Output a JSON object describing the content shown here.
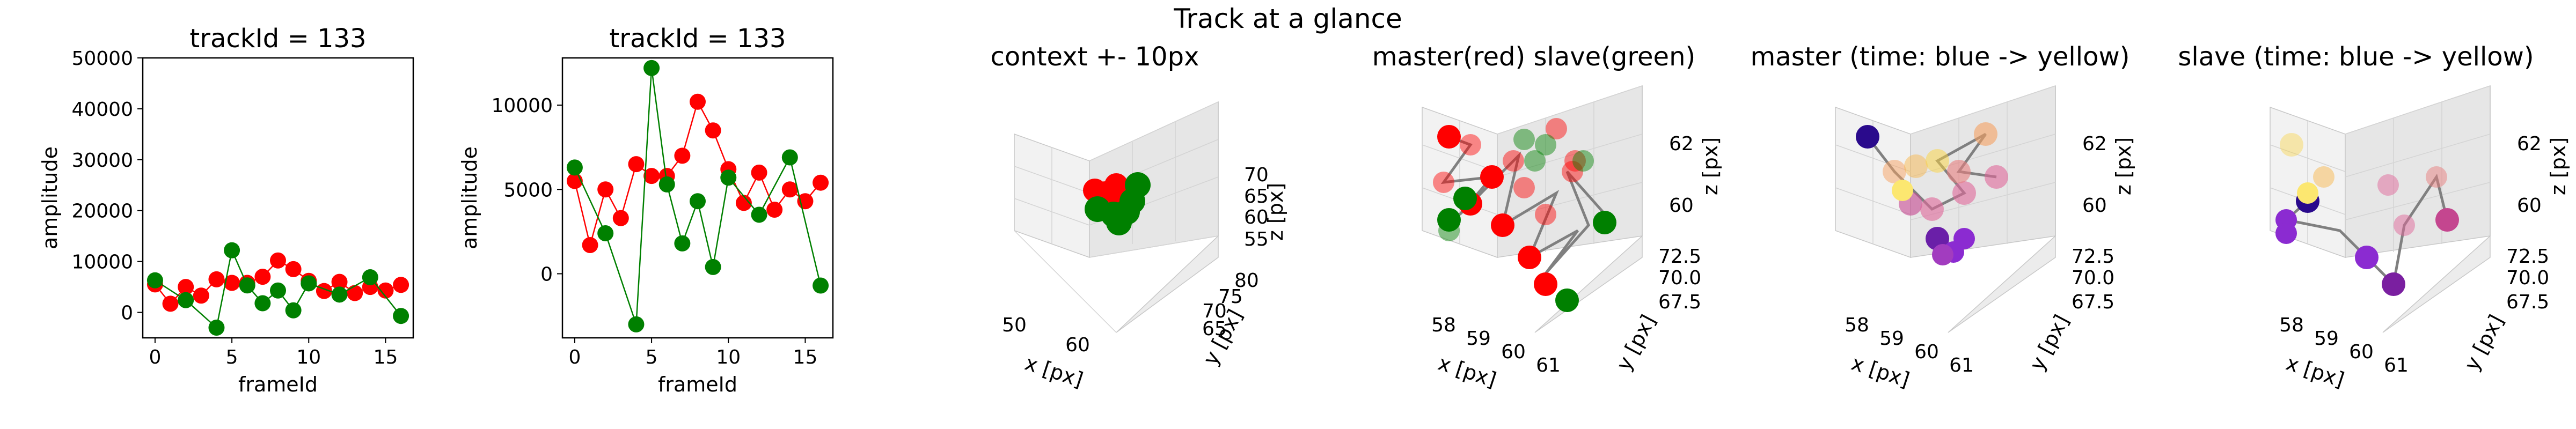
{
  "figure": {
    "suptitle": "Track at a glance"
  },
  "chart_data": [
    {
      "type": "scatter",
      "title": "trackId = 133",
      "xlabel": "frameId",
      "ylabel": "amplitude",
      "xlim": [
        -0.8,
        16.8
      ],
      "ylim": [
        -5000,
        50000
      ],
      "xticks": [
        "0",
        "5",
        "10",
        "15"
      ],
      "yticks": [
        "0",
        "10000",
        "20000",
        "30000",
        "40000",
        "50000"
      ],
      "series": [
        {
          "color": "#ff0000",
          "x": [
            0,
            1,
            2,
            3,
            4,
            5,
            6,
            7,
            8,
            9,
            10,
            11,
            12,
            13,
            14,
            15,
            16
          ],
          "y": [
            5500,
            1700,
            5000,
            3300,
            6500,
            5800,
            5800,
            7000,
            10200,
            8500,
            6200,
            4200,
            6000,
            3800,
            5000,
            4300,
            5400
          ]
        },
        {
          "color": "#008000",
          "x": [
            0,
            2,
            4,
            5,
            6,
            7,
            8,
            9,
            10,
            12,
            14,
            16
          ],
          "y": [
            6300,
            2400,
            -3000,
            12200,
            5300,
            1800,
            4300,
            400,
            5700,
            3500,
            6900,
            -700
          ]
        }
      ]
    },
    {
      "type": "scatter",
      "title": "trackId = 133",
      "xlabel": "frameId",
      "ylabel": "amplitude",
      "xlim": [
        -0.8,
        16.8
      ],
      "ylim": [
        -3800,
        12800
      ],
      "xticks": [
        "0",
        "5",
        "10",
        "15"
      ],
      "yticks": [
        "0",
        "5000",
        "10000"
      ],
      "series": [
        {
          "color": "#ff0000",
          "x": [
            0,
            1,
            2,
            3,
            4,
            5,
            6,
            7,
            8,
            9,
            10,
            11,
            12,
            13,
            14,
            15,
            16
          ],
          "y": [
            5500,
            1700,
            5000,
            3300,
            6500,
            5800,
            5800,
            7000,
            10200,
            8500,
            6200,
            4200,
            6000,
            3800,
            5000,
            4300,
            5400
          ]
        },
        {
          "color": "#008000",
          "x": [
            0,
            2,
            4,
            5,
            6,
            7,
            8,
            9,
            10,
            12,
            14,
            16
          ],
          "y": [
            6300,
            2400,
            -3000,
            12200,
            5300,
            1800,
            4300,
            400,
            5700,
            3500,
            6900,
            -700
          ]
        }
      ]
    },
    {
      "type": "scatter3d",
      "title": "context +- 10px",
      "xlabel": "x [px]",
      "ylabel": "y [px]",
      "zlabel": "z [px]",
      "xticks": [
        "50",
        "60"
      ],
      "yticks": [
        "65",
        "70",
        "75",
        "80"
      ],
      "zticks": [
        "55",
        "60",
        "65",
        "70"
      ],
      "colors": [
        "#ff0000",
        "#008000",
        "#808080"
      ]
    },
    {
      "type": "scatter3d",
      "title": "master(red) slave(green)",
      "xlabel": "x [px]",
      "ylabel": "y [px]",
      "zlabel": "z [px]",
      "xticks": [
        "58",
        "59",
        "60",
        "61"
      ],
      "yticks": [
        "67.5",
        "70.0",
        "72.5"
      ],
      "zticks": [
        "60",
        "62"
      ],
      "colors": [
        "#ff0000",
        "#008000",
        "#808080"
      ]
    },
    {
      "type": "scatter3d",
      "title": "master (time: blue -> yellow)",
      "xlabel": "x [px]",
      "ylabel": "y [px]",
      "zlabel": "z [px]",
      "xticks": [
        "58",
        "59",
        "60",
        "61"
      ],
      "yticks": [
        "67.5",
        "70.0",
        "72.5"
      ],
      "zticks": [
        "60",
        "62"
      ],
      "colors": [
        "#2a0a8c",
        "#8b2bd1",
        "#e0689a",
        "#fbd33d"
      ]
    },
    {
      "type": "scatter3d",
      "title": "slave (time: blue -> yellow)",
      "xlabel": "x [px]",
      "ylabel": "y [px]",
      "zlabel": "z [px]",
      "xticks": [
        "58",
        "59",
        "60",
        "61"
      ],
      "yticks": [
        "67.5",
        "70.0",
        "72.5"
      ],
      "zticks": [
        "60",
        "62"
      ],
      "colors": [
        "#2a0a8c",
        "#8b2bd1",
        "#e0689a",
        "#fbd33d"
      ]
    }
  ]
}
